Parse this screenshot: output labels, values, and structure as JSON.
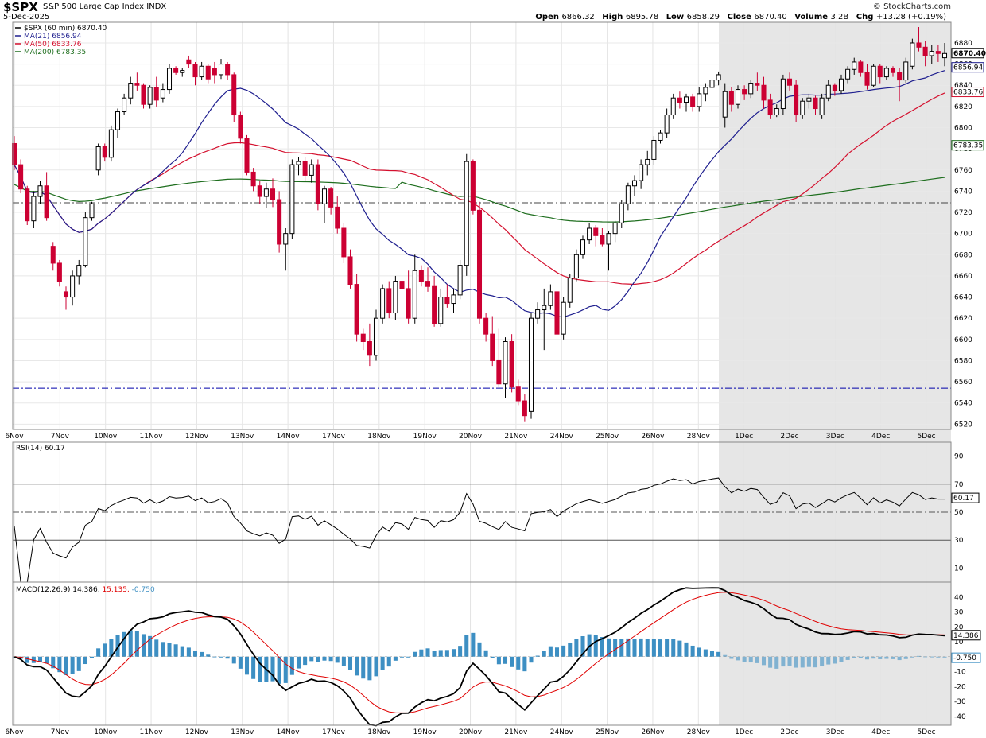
{
  "header": {
    "symbol": "$SPX",
    "name": "S&P 500 Large Cap Index",
    "exchange": "INDX",
    "date": "5-Dec-2025",
    "brand": "© StockCharts.com",
    "open_label": "Open",
    "open": "6866.32",
    "high_label": "High",
    "high": "6895.78",
    "low_label": "Low",
    "low": "6858.29",
    "close_label": "Close",
    "close": "6870.40",
    "volume_label": "Volume",
    "volume": "3.2B",
    "chg_label": "Chg",
    "chg": "+13.28 (+0.19%)"
  },
  "colors": {
    "up": "#000000",
    "down": "#cc0033",
    "ma21": "#1f1f8f",
    "ma50": "#d4102e",
    "ma200": "#1e6e1e",
    "rsi": "#000000",
    "macd": "#000000",
    "signal": "#e00000",
    "hist": "#3d8fc3",
    "shade": "#e6e6e6",
    "support": "#0000aa"
  },
  "chart_data": [
    {
      "type": "candlestick",
      "legend": [
        {
          "label": "$SPX (60 min) 6870.40"
        },
        {
          "label": "MA(21) 6856.94"
        },
        {
          "label": "MA(50) 6833.76"
        },
        {
          "label": "MA(200) 6783.35"
        }
      ],
      "x_labels": [
        "6Nov",
        "7Nov",
        "10Nov",
        "11Nov",
        "12Nov",
        "13Nov",
        "14Nov",
        "17Nov",
        "18Nov",
        "19Nov",
        "20Nov",
        "21Nov",
        "24Nov",
        "25Nov",
        "26Nov",
        "28Nov",
        "1Dec",
        "2Dec",
        "3Dec",
        "4Dec",
        "5Dec"
      ],
      "y_ticks": [
        6520,
        6540,
        6560,
        6580,
        6600,
        6620,
        6640,
        6660,
        6680,
        6700,
        6720,
        6740,
        6760,
        6780,
        6800,
        6820,
        6840,
        6860,
        6880
      ],
      "ylim": [
        6515,
        6895
      ],
      "last_labels": [
        "6870.40",
        "6856.94",
        "6833.76",
        "6783.35"
      ],
      "ref_lines": [
        6812,
        6729,
        6554
      ],
      "candles": [
        [
          6785,
          6792,
          6760,
          6765
        ],
        [
          6765,
          6770,
          6738,
          6742
        ],
        [
          6742,
          6745,
          6708,
          6712
        ],
        [
          6712,
          6740,
          6705,
          6735
        ],
        [
          6735,
          6750,
          6728,
          6745
        ],
        [
          6745,
          6758,
          6712,
          6715
        ],
        [
          6688,
          6692,
          6665,
          6672
        ],
        [
          6672,
          6675,
          6650,
          6655
        ],
        [
          6645,
          6650,
          6628,
          6640
        ],
        [
          6640,
          6665,
          6632,
          6660
        ],
        [
          6660,
          6675,
          6652,
          6670
        ],
        [
          6670,
          6720,
          6668,
          6715
        ],
        [
          6715,
          6730,
          6712,
          6728
        ],
        [
          6760,
          6785,
          6755,
          6782
        ],
        [
          6782,
          6785,
          6768,
          6772
        ],
        [
          6772,
          6802,
          6768,
          6798
        ],
        [
          6798,
          6818,
          6790,
          6815
        ],
        [
          6815,
          6832,
          6812,
          6828
        ],
        [
          6828,
          6848,
          6822,
          6842
        ],
        [
          6842,
          6852,
          6835,
          6840
        ],
        [
          6840,
          6842,
          6818,
          6822
        ],
        [
          6822,
          6840,
          6818,
          6838
        ],
        [
          6838,
          6848,
          6820,
          6826
        ],
        [
          6828,
          6842,
          6824,
          6836
        ],
        [
          6836,
          6860,
          6832,
          6856
        ],
        [
          6856,
          6858,
          6850,
          6852
        ],
        [
          6852,
          6856,
          6848,
          6854
        ],
        [
          6864,
          6868,
          6856,
          6860
        ],
        [
          6860,
          6862,
          6840,
          6848
        ],
        [
          6848,
          6862,
          6845,
          6858
        ],
        [
          6858,
          6860,
          6842,
          6846
        ],
        [
          6856,
          6862,
          6842,
          6850
        ],
        [
          6850,
          6865,
          6846,
          6860
        ],
        [
          6860,
          6862,
          6845,
          6850
        ],
        [
          6850,
          6852,
          6805,
          6812
        ],
        [
          6812,
          6815,
          6785,
          6790
        ],
        [
          6790,
          6793,
          6755,
          6758
        ],
        [
          6758,
          6762,
          6740,
          6745
        ],
        [
          6745,
          6750,
          6728,
          6735
        ],
        [
          6735,
          6748,
          6724,
          6742
        ],
        [
          6742,
          6752,
          6725,
          6732
        ],
        [
          6732,
          6740,
          6682,
          6690
        ],
        [
          6690,
          6705,
          6665,
          6700
        ],
        [
          6700,
          6770,
          6695,
          6765
        ],
        [
          6765,
          6772,
          6755,
          6768
        ],
        [
          6768,
          6772,
          6750,
          6755
        ],
        [
          6755,
          6770,
          6748,
          6765
        ],
        [
          6765,
          6770,
          6722,
          6728
        ],
        [
          6728,
          6745,
          6710,
          6742
        ],
        [
          6742,
          6744,
          6718,
          6725
        ],
        [
          6725,
          6735,
          6700,
          6705
        ],
        [
          6705,
          6710,
          6672,
          6678
        ],
        [
          6678,
          6685,
          6648,
          6652
        ],
        [
          6652,
          6662,
          6598,
          6605
        ],
        [
          6605,
          6610,
          6590,
          6598
        ],
        [
          6598,
          6615,
          6575,
          6585
        ],
        [
          6585,
          6628,
          6580,
          6620
        ],
        [
          6620,
          6652,
          6615,
          6648
        ],
        [
          6648,
          6655,
          6620,
          6625
        ],
        [
          6625,
          6660,
          6618,
          6655
        ],
        [
          6655,
          6665,
          6640,
          6648
        ],
        [
          6648,
          6665,
          6615,
          6620
        ],
        [
          6620,
          6680,
          6615,
          6665
        ],
        [
          6665,
          6670,
          6650,
          6655
        ],
        [
          6655,
          6668,
          6645,
          6650
        ],
        [
          6650,
          6660,
          6612,
          6615
        ],
        [
          6615,
          6648,
          6612,
          6640
        ],
        [
          6640,
          6652,
          6630,
          6634
        ],
        [
          6634,
          6648,
          6625,
          6642
        ],
        [
          6642,
          6675,
          6638,
          6670
        ],
        [
          6670,
          6775,
          6660,
          6768
        ],
        [
          6768,
          6770,
          6718,
          6722
        ],
        [
          6722,
          6730,
          6615,
          6620
        ],
        [
          6620,
          6625,
          6598,
          6605
        ],
        [
          6605,
          6622,
          6575,
          6580
        ],
        [
          6580,
          6610,
          6555,
          6558
        ],
        [
          6558,
          6602,
          6545,
          6598
        ],
        [
          6598,
          6605,
          6550,
          6555
        ],
        [
          6555,
          6562,
          6538,
          6542
        ],
        [
          6542,
          6548,
          6522,
          6528
        ],
        [
          6532,
          6625,
          6525,
          6620
        ],
        [
          6620,
          6635,
          6615,
          6628
        ],
        [
          6628,
          6648,
          6590,
          6632
        ],
        [
          6632,
          6652,
          6628,
          6645
        ],
        [
          6645,
          6650,
          6598,
          6605
        ],
        [
          6605,
          6640,
          6600,
          6635
        ],
        [
          6635,
          6662,
          6630,
          6658
        ],
        [
          6658,
          6685,
          6655,
          6680
        ],
        [
          6680,
          6698,
          6676,
          6694
        ],
        [
          6694,
          6710,
          6690,
          6705
        ],
        [
          6705,
          6708,
          6688,
          6698
        ],
        [
          6698,
          6705,
          6688,
          6690
        ],
        [
          6690,
          6702,
          6665,
          6700
        ],
        [
          6700,
          6712,
          6692,
          6710
        ],
        [
          6710,
          6732,
          6705,
          6728
        ],
        [
          6728,
          6748,
          6722,
          6745
        ],
        [
          6745,
          6755,
          6735,
          6750
        ],
        [
          6750,
          6770,
          6742,
          6765
        ],
        [
          6765,
          6778,
          6755,
          6770
        ],
        [
          6770,
          6792,
          6765,
          6788
        ],
        [
          6788,
          6798,
          6785,
          6795
        ],
        [
          6795,
          6818,
          6790,
          6812
        ],
        [
          6812,
          6832,
          6808,
          6828
        ],
        [
          6828,
          6834,
          6818,
          6824
        ],
        [
          6824,
          6832,
          6815,
          6829
        ],
        [
          6829,
          6832,
          6815,
          6820
        ],
        [
          6820,
          6838,
          6815,
          6832
        ],
        [
          6832,
          6842,
          6825,
          6838
        ],
        [
          6838,
          6848,
          6835,
          6845
        ],
        [
          6845,
          6853,
          6840,
          6850
        ],
        [
          6810,
          6842,
          6800,
          6834
        ],
        [
          6834,
          6838,
          6815,
          6822
        ],
        [
          6822,
          6840,
          6818,
          6836
        ],
        [
          6836,
          6840,
          6826,
          6832
        ],
        [
          6832,
          6845,
          6828,
          6842
        ],
        [
          6842,
          6852,
          6835,
          6840
        ],
        [
          6840,
          6848,
          6818,
          6826
        ],
        [
          6826,
          6832,
          6808,
          6812
        ],
        [
          6812,
          6822,
          6810,
          6818
        ],
        [
          6818,
          6850,
          6812,
          6846
        ],
        [
          6846,
          6852,
          6835,
          6840
        ],
        [
          6840,
          6845,
          6805,
          6812
        ],
        [
          6812,
          6828,
          6808,
          6825
        ],
        [
          6825,
          6832,
          6818,
          6828
        ],
        [
          6828,
          6830,
          6812,
          6818
        ],
        [
          6812,
          6832,
          6808,
          6828
        ],
        [
          6828,
          6845,
          6825,
          6840
        ],
        [
          6840,
          6842,
          6830,
          6835
        ],
        [
          6835,
          6850,
          6832,
          6846
        ],
        [
          6846,
          6858,
          6842,
          6855
        ],
        [
          6855,
          6866,
          6850,
          6862
        ],
        [
          6862,
          6864,
          6848,
          6852
        ],
        [
          6852,
          6860,
          6836,
          6840
        ],
        [
          6840,
          6860,
          6838,
          6858
        ],
        [
          6858,
          6860,
          6842,
          6848
        ],
        [
          6848,
          6858,
          6845,
          6856
        ],
        [
          6856,
          6858,
          6848,
          6852
        ],
        [
          6852,
          6856,
          6825,
          6845
        ],
        [
          6845,
          6866,
          6842,
          6862
        ],
        [
          6858,
          6884,
          6855,
          6880
        ],
        [
          6880,
          6895,
          6872,
          6876
        ],
        [
          6876,
          6882,
          6858,
          6868
        ],
        [
          6868,
          6878,
          6860,
          6872
        ],
        [
          6872,
          6878,
          6862,
          6870
        ],
        [
          6866,
          6880,
          6858,
          6870
        ]
      ]
    },
    {
      "type": "line",
      "legend": "RSI(14) 60.17",
      "y_ticks": [
        10,
        30,
        50,
        70,
        90
      ],
      "ylim": [
        0,
        100
      ],
      "levels": [
        70,
        30
      ],
      "mid_level": 50,
      "last_label": "60.17"
    },
    {
      "type": "histogram_line",
      "legend_macd": "MACD(12,26,9) 14.386,",
      "legend_signal": "15.135,",
      "legend_hist": "-0.750",
      "y_ticks": [
        -40,
        -30,
        -20,
        -10,
        0,
        10,
        20,
        30,
        40
      ],
      "ylim": [
        -46,
        50
      ],
      "last_macd_label": "14.386",
      "last_hist_label": "-0.750"
    }
  ]
}
